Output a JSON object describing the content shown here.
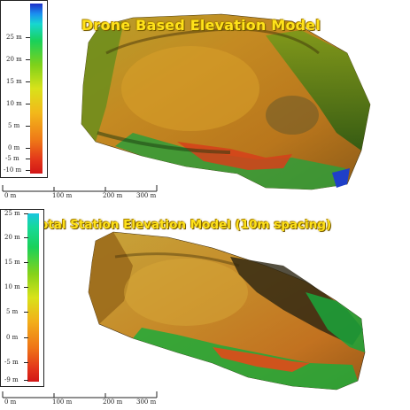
{
  "top_panel": {
    "title": "Drone Based Elevation Model",
    "legend": {
      "labels": [
        "25 m",
        "20 m",
        "15 m",
        "10 m",
        "5 m",
        "0 m",
        "-5 m",
        "-10 m"
      ]
    },
    "scale_bar": {
      "labels": [
        "0 m",
        "100 m",
        "200 m",
        "300 m"
      ]
    }
  },
  "bottom_panel": {
    "title": "GPS/Total Station Elevation Model (10m spacing)",
    "legend": {
      "labels": [
        "25 m",
        "20 m",
        "15 m",
        "10 m",
        "5 m",
        "0 m",
        "-5 m",
        "-9 m"
      ]
    },
    "scale_bar": {
      "labels": [
        "0 m",
        "100 m",
        "200 m",
        "300 m"
      ]
    }
  },
  "colors": {
    "title": "#ffe21a",
    "ramp_high": "#1f2fc8",
    "ramp_mid": "#d9e21a",
    "ramp_low": "#d21616"
  }
}
